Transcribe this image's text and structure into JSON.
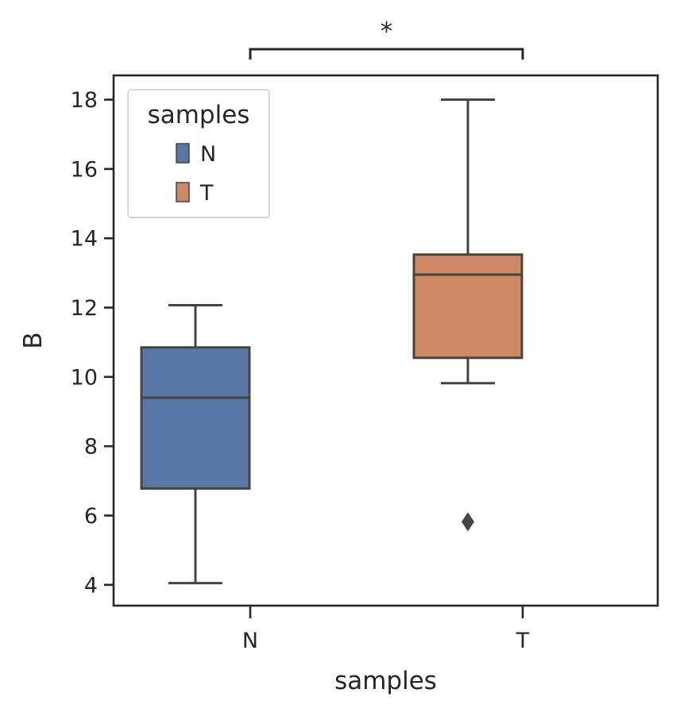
{
  "chart_data": {
    "type": "box",
    "xlabel": "samples",
    "ylabel": "B",
    "categories": [
      "N",
      "T"
    ],
    "ylim": [
      3.4,
      18.7
    ],
    "yticks": [
      4,
      6,
      8,
      10,
      12,
      14,
      16,
      18
    ],
    "grid": false,
    "legend": {
      "title": "samples",
      "placement": "top-left",
      "entries": [
        "N",
        "T"
      ]
    },
    "boxes": [
      {
        "category": "N",
        "whisker_low": 4.05,
        "q1": 6.78,
        "median": 9.4,
        "q3": 10.85,
        "whisker_high": 12.07,
        "outliers": [],
        "color": "#5876A6"
      },
      {
        "category": "T",
        "whisker_low": 9.82,
        "q1": 10.55,
        "median": 12.95,
        "q3": 13.53,
        "whisker_high": 18.0,
        "outliers": [
          5.82
        ],
        "color": "#CC8963"
      }
    ],
    "annotation": {
      "from": "N",
      "to": "T",
      "text": "*"
    }
  }
}
